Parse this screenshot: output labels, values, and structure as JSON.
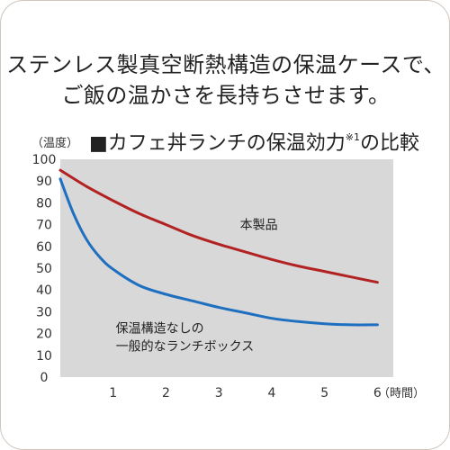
{
  "headline": {
    "line1": "ステンレス製真空断熱構造の保温ケースで、",
    "line2": "ご飯の温かさを長持ちさせます。"
  },
  "chart_data": {
    "type": "line",
    "title": "■カフェ丼ランチの保温効力",
    "title_note": "※1",
    "title_suffix": "の比較",
    "ylabel": "（温度）",
    "xlabel": "（時間）",
    "ylim": [
      0,
      100
    ],
    "xlim": [
      0,
      6.3
    ],
    "y_ticks": [
      0,
      10,
      20,
      30,
      40,
      50,
      60,
      70,
      80,
      90,
      100
    ],
    "x_ticks": [
      1,
      2,
      3,
      4,
      5,
      6
    ],
    "grid": false,
    "legend": "none",
    "background_color": "#d8d8d8",
    "series": [
      {
        "name": "本製品",
        "color": "#b22222",
        "x": [
          0,
          0.5,
          1,
          1.5,
          2,
          2.5,
          3,
          3.5,
          4,
          4.5,
          5,
          5.5,
          6
        ],
        "y": [
          95,
          87.5,
          81,
          75,
          70,
          65,
          61,
          57.5,
          54,
          51,
          48.5,
          46,
          43.5
        ]
      },
      {
        "name": "保温構造なしの一般的なランチボックス",
        "color": "#1f6fc1",
        "x": [
          0,
          0.25,
          0.5,
          0.75,
          1,
          1.5,
          2,
          2.5,
          3,
          3.5,
          4,
          4.5,
          5,
          5.5,
          6
        ],
        "y": [
          91,
          75,
          63,
          55,
          49.5,
          42,
          38,
          35,
          32,
          29.5,
          27,
          25.5,
          24.5,
          24,
          24
        ]
      }
    ],
    "annotations": [
      {
        "lines": [
          "本製品"
        ],
        "x": 3.4,
        "y": 68
      },
      {
        "lines": [
          "保温構造なしの",
          "一般的なランチボックス"
        ],
        "x": 1.05,
        "y": 20.5
      }
    ]
  }
}
